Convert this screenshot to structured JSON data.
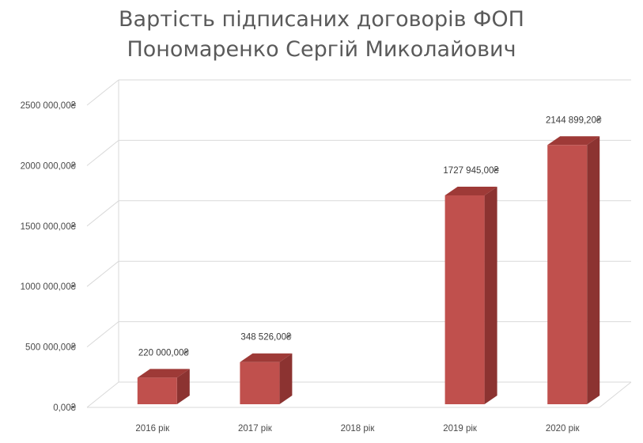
{
  "chart_data": {
    "type": "bar",
    "title_lines": [
      "Вартість підписаних договорів ФОП",
      "Пономаренко Сергій Миколайович"
    ],
    "categories": [
      "2016 рік",
      "2017 рік",
      "2018 рік",
      "2019 рік",
      "2020 рік"
    ],
    "values": [
      220000,
      348526,
      0,
      1727945,
      2144899.2
    ],
    "data_labels": [
      "220 000,00₴",
      "348 526,00₴",
      "",
      "1727 945,00₴",
      "2144 899,20₴"
    ],
    "y_ticks": [
      0,
      500000,
      1000000,
      1500000,
      2000000,
      2500000
    ],
    "y_tick_labels": [
      "0,00₴",
      "500 000,00₴",
      "1000 000,00₴",
      "1500 000,00₴",
      "2000 000,00₴",
      "2500 000,00₴"
    ],
    "ylim": [
      0,
      2500000
    ],
    "xlabel": "",
    "ylabel": "",
    "grid": true,
    "legend": "none",
    "style": "3d-column",
    "colors": {
      "bar_front": "#c0504d",
      "bar_side": "#8c3331",
      "bar_top": "#9e3a37",
      "grid": "#d9d9d9",
      "wall": "#bfbfbf"
    }
  }
}
